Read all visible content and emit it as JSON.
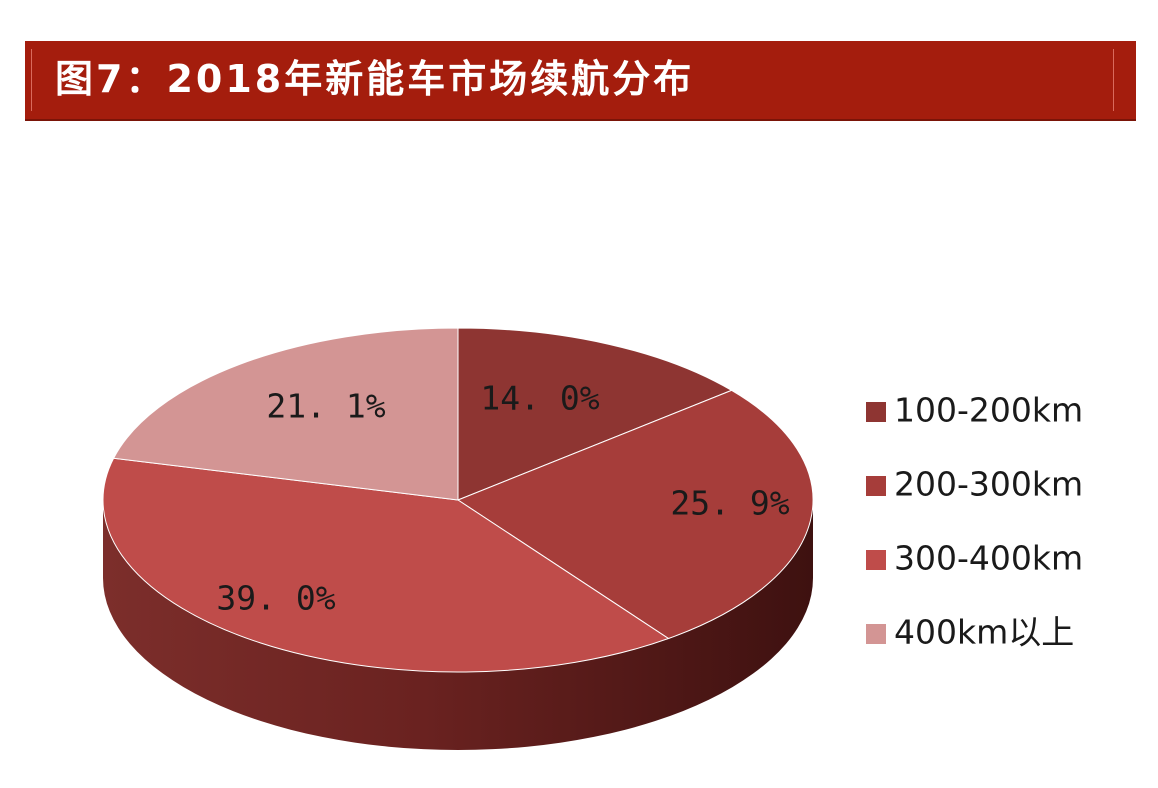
{
  "title": "图7：2018年新能车市场续航分布",
  "chart_data": {
    "type": "pie",
    "title": "图7：2018年新能车市场续航分布",
    "categories": [
      "100-200km",
      "200-300km",
      "300-400km",
      "400km以上"
    ],
    "values": [
      14.0,
      25.9,
      39.0,
      21.1
    ],
    "data_labels": [
      "14. 0%",
      "25. 9%",
      "39. 0%",
      "21. 1%"
    ],
    "colors": [
      "#8e3532",
      "#a63d3a",
      "#bf4c4a",
      "#d39594"
    ],
    "legend_position": "right"
  }
}
